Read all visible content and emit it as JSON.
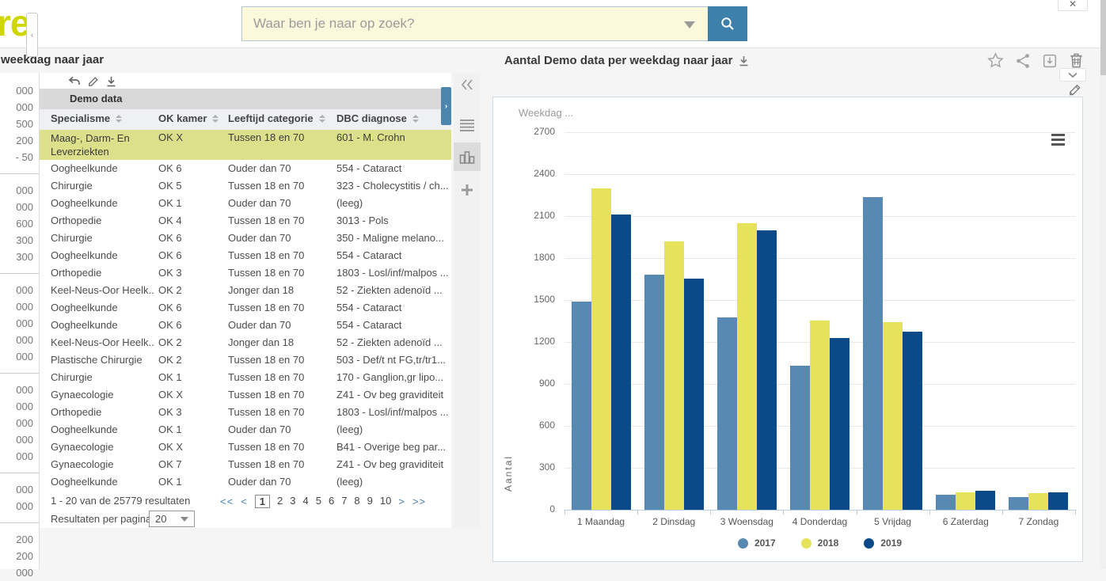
{
  "colors": {
    "accent_blue": "#3d80ac",
    "logo_green": "#cfd600",
    "selected_row_yellow": "#dde08b",
    "tab_gray": "#d9d9d9",
    "series_2017": "#5789b3",
    "series_2018": "#e6e35a",
    "series_2019": "#0b4a88"
  },
  "icons": {
    "search": "magnifier",
    "dropdown-caret": "▼",
    "close": "✕",
    "favorite": "star-outline",
    "share": "share-nodes",
    "save": "box-arrow-down",
    "delete": "trash-can",
    "collapse": "chevron-down",
    "edit": "pencil",
    "download": "arrow-down-to-line",
    "undo": "reply-arrow",
    "collapse-left": "double-chevron-left",
    "table-view": "list-lines",
    "chart-view": "bar-chart",
    "add": "plus",
    "chart-menu": "hamburger",
    "sort": "up-down-triangles"
  },
  "topbar": {
    "logo_partial": "re",
    "search_placeholder": "Waar ben je naar op zoek?",
    "close_glyph": "✕"
  },
  "page_title_partial": "weekdag naar jaar",
  "left_strip_groups": [
    [
      "000",
      "000",
      "500",
      "200",
      "- 50"
    ],
    [
      "000",
      "000",
      "600",
      "300",
      "300"
    ],
    [
      "000",
      "000",
      "000",
      "000",
      "000"
    ],
    [
      "000",
      "000",
      "000",
      "000",
      "000"
    ],
    [
      "000",
      "000"
    ],
    [
      "200",
      "200",
      "000"
    ]
  ],
  "table": {
    "source_name": "Demo data",
    "columns": [
      "Specialisme",
      "OK kamer",
      "Leeftijd categorie",
      "DBC diagnose"
    ],
    "selected_row_index": 0,
    "rows": [
      [
        "Maag-, Darm- En Leverziekten",
        "OK X",
        "Tussen 18 en 70",
        "601 - M. Crohn"
      ],
      [
        "Oogheelkunde",
        "OK 6",
        "Ouder dan 70",
        "554 - Cataract"
      ],
      [
        "Chirurgie",
        "OK 5",
        "Tussen 18 en 70",
        "323 - Cholecystitis / ch..."
      ],
      [
        "Oogheelkunde",
        "OK 1",
        "Ouder dan 70",
        "(leeg)"
      ],
      [
        "Orthopedie",
        "OK 4",
        "Tussen 18 en 70",
        "3013 - Pols"
      ],
      [
        "Chirurgie",
        "OK 6",
        "Ouder dan 70",
        "350 - Maligne melano..."
      ],
      [
        "Oogheelkunde",
        "OK 6",
        "Tussen 18 en 70",
        "554 - Cataract"
      ],
      [
        "Orthopedie",
        "OK 3",
        "Tussen 18 en 70",
        "1803 - Losl/inf/malpos ..."
      ],
      [
        "Keel-Neus-Oor Heelk...",
        "OK 2",
        "Jonger dan 18",
        "52 - Ziekten adenoïd ..."
      ],
      [
        "Oogheelkunde",
        "OK 6",
        "Tussen 18 en 70",
        "554 - Cataract"
      ],
      [
        "Oogheelkunde",
        "OK 6",
        "Ouder dan 70",
        "554 - Cataract"
      ],
      [
        "Keel-Neus-Oor Heelk...",
        "OK 2",
        "Jonger dan 18",
        "52 - Ziekten adenoïd ..."
      ],
      [
        "Plastische Chirurgie",
        "OK 2",
        "Tussen 18 en 70",
        "503 - Def/t nt FG,tr/tr1..."
      ],
      [
        "Chirurgie",
        "OK 1",
        "Tussen 18 en 70",
        "170 - Ganglion,gr lipo..."
      ],
      [
        "Gynaecologie",
        "OK X",
        "Tussen 18 en 70",
        "Z41 - Ov beg graviditeit"
      ],
      [
        "Orthopedie",
        "OK 3",
        "Tussen 18 en 70",
        "1803 - Losl/inf/malpos ..."
      ],
      [
        "Oogheelkunde",
        "OK 1",
        "Ouder dan 70",
        "(leeg)"
      ],
      [
        "Gynaecologie",
        "OK X",
        "Tussen 18 en 70",
        "B41 - Overige beg par..."
      ],
      [
        "Gynaecologie",
        "OK 7",
        "Tussen 18 en 70",
        "Z41 - Ov beg graviditeit"
      ],
      [
        "Oogheelkunde",
        "OK 1",
        "Ouder dan 70",
        "(leeg)"
      ]
    ],
    "footer": {
      "results_summary": "1 - 20 van de 25779 resultaten",
      "per_page_label": "Resultaten per pagina",
      "per_page_value": "20",
      "pages": [
        "1",
        "2",
        "3",
        "4",
        "5",
        "6",
        "7",
        "8",
        "9",
        "10"
      ],
      "current_page": "1",
      "nav": {
        "first": "<<",
        "prev": "<",
        "next": ">",
        "last": ">>"
      }
    }
  },
  "chart_panel": {
    "title": "Aantal Demo data per weekdag naar jaar",
    "field_label": "Weekdag ..."
  },
  "chart_data": {
    "type": "bar",
    "title": "Aantal Demo data per weekdag naar jaar",
    "categories": [
      "1 Maandag",
      "2 Dinsdag",
      "3 Woensdag",
      "4 Donderdag",
      "5 Vrijdag",
      "6 Zaterdag",
      "7 Zondag"
    ],
    "series": [
      {
        "name": "2017",
        "color": "#5789b3",
        "values": [
          1490,
          1680,
          1375,
          1030,
          2235,
          105,
          90
        ]
      },
      {
        "name": "2018",
        "color": "#e6e35a",
        "values": [
          2300,
          1920,
          2050,
          1350,
          1340,
          125,
          120
        ]
      },
      {
        "name": "2019",
        "color": "#0b4a88",
        "values": [
          2110,
          1650,
          2000,
          1230,
          1275,
          135,
          125
        ]
      }
    ],
    "xlabel": "",
    "ylabel": "Aantal",
    "ylim": [
      0,
      2700
    ],
    "yticks": [
      0,
      300,
      600,
      900,
      1200,
      1500,
      1800,
      2100,
      2400,
      2700
    ],
    "grid": true,
    "legend_position": "bottom"
  }
}
